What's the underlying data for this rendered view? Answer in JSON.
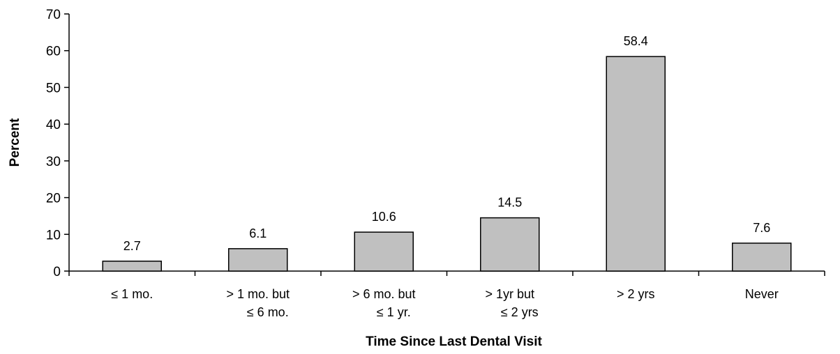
{
  "chart_data": {
    "type": "bar",
    "title": "",
    "xlabel": "Time Since Last Dental Visit",
    "ylabel": "Percent",
    "ylim": [
      0,
      70
    ],
    "yticks": [
      0,
      10,
      20,
      30,
      40,
      50,
      60,
      70
    ],
    "grid": false,
    "legend": "none",
    "bar_color": "#c0c0c0",
    "categories": [
      [
        "≤ 1 mo."
      ],
      [
        "> 1 mo. but",
        "≤ 6 mo."
      ],
      [
        "> 6 mo. but",
        "≤ 1 yr."
      ],
      [
        "> 1yr but",
        "≤ 2 yrs"
      ],
      [
        "> 2 yrs"
      ],
      [
        "Never"
      ]
    ],
    "values": [
      2.7,
      6.1,
      10.6,
      14.5,
      58.4,
      7.6
    ],
    "data_labels": [
      "2.7",
      "6.1",
      "10.6",
      "14.5",
      "58.4",
      "7.6"
    ]
  }
}
